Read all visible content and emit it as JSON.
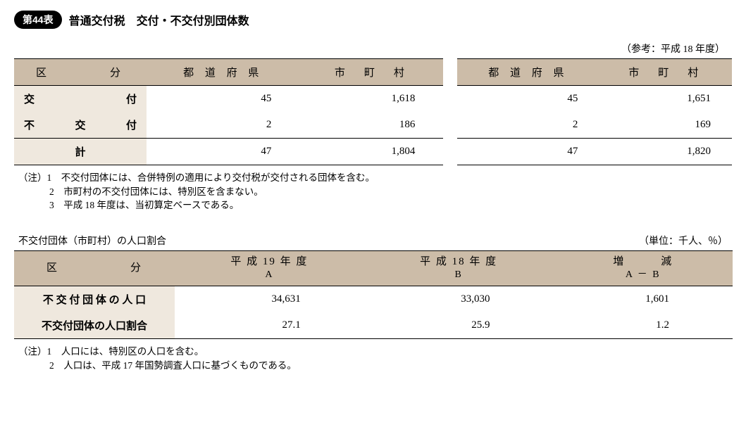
{
  "header": {
    "badge": "第44表",
    "title": "普通交付税　交付・不交付別団体数",
    "reference_note": "（参考：平成 18 年度）"
  },
  "table1": {
    "columns": [
      "区　　　　分",
      "都 道 府 県",
      "市　町　村"
    ],
    "rows": [
      {
        "label": "交　　　付",
        "pref": "45",
        "muni": "1,618"
      },
      {
        "label": "不　交　付",
        "pref": "2",
        "muni": "186"
      },
      {
        "label": "計",
        "pref": "47",
        "muni": "1,804"
      }
    ]
  },
  "table2": {
    "columns": [
      "都 道 府 県",
      "市　町　村"
    ],
    "rows": [
      {
        "pref": "45",
        "muni": "1,651"
      },
      {
        "pref": "2",
        "muni": "169"
      },
      {
        "pref": "47",
        "muni": "1,820"
      }
    ]
  },
  "notes1": {
    "line1": "（注）1　不交付団体には、合併特例の適用により交付税が交付される団体を含む。",
    "line2": "2　市町村の不交付団体には、特別区を含まない。",
    "line3": "3　平成 18 年度は、当初算定ベースである。"
  },
  "section2": {
    "heading": "不交付団体（市町村）の人口割合",
    "unit": "（単位：千人、％）"
  },
  "table3": {
    "col0": "区　　　　　　分",
    "col1_top": "平 成 19 年 度",
    "col1_sub": "A",
    "col2_top": "平 成 18 年 度",
    "col2_sub": "B",
    "col3_top": "増　　　減",
    "col3_sub": "A － B",
    "rows": [
      {
        "label": "不 交 付 団 体 の 人 口",
        "a": "34,631",
        "b": "33,030",
        "d": "1,601"
      },
      {
        "label": "不交付団体の人口割合",
        "a": "27.1",
        "b": "25.9",
        "d": "1.2"
      }
    ]
  },
  "notes2": {
    "line1": "（注）1　人口には、特別区の人口を含む。",
    "line2": "2　人口は、平成 17 年国勢調査人口に基づくものである。"
  },
  "colors": {
    "header_bg": "#ccbca8",
    "rowlabel_bg": "#efe8de",
    "border": "#000000",
    "background": "#ffffff"
  }
}
